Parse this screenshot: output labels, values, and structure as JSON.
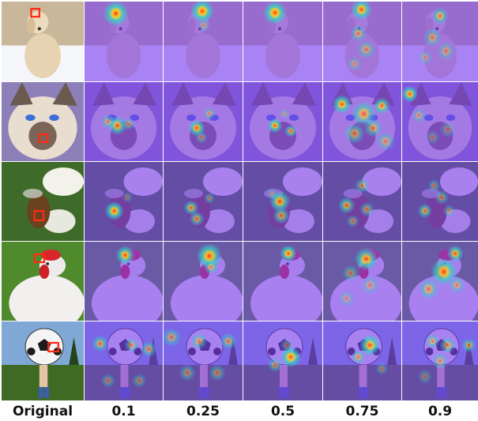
{
  "figure": {
    "columns": [
      {
        "id": "original",
        "label": "Original"
      },
      {
        "id": "r010",
        "label": "0.1"
      },
      {
        "id": "r025",
        "label": "0.25"
      },
      {
        "id": "r050",
        "label": "0.5"
      },
      {
        "id": "r075",
        "label": "0.75"
      },
      {
        "id": "r090",
        "label": "0.9"
      }
    ],
    "rows": [
      {
        "subject": "dog",
        "scene": "white dog sitting in snow"
      },
      {
        "subject": "cat",
        "scene": "siamese cat face close-up"
      },
      {
        "subject": "insect",
        "scene": "insect on a white flower"
      },
      {
        "subject": "rooster",
        "scene": "white rooster with red comb"
      },
      {
        "subject": "soccer-ball",
        "scene": "person holding soccer ball on grass field"
      }
    ],
    "colors": {
      "heatmap_low": "#7a3cf0",
      "heatmap_mid": "#33d1c9",
      "heatmap_high": "#ff3b1f",
      "query_box": "#ff2a12",
      "label_text": "#111111"
    }
  }
}
